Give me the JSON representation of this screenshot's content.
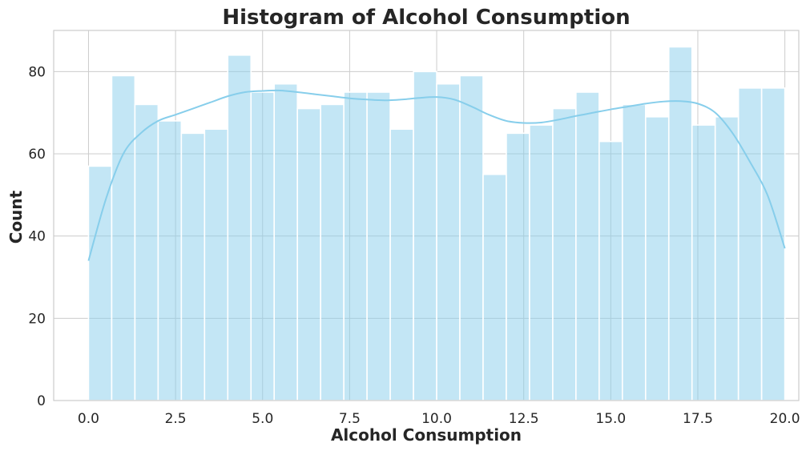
{
  "chart_data": {
    "type": "histogram",
    "title": "Histogram of Alcohol Consumption",
    "xlabel": "Alcohol Consumption",
    "ylabel": "Count",
    "xlim": [
      -1,
      20.4
    ],
    "ylim": [
      0,
      90
    ],
    "xticks": [
      0.0,
      2.5,
      5.0,
      7.5,
      10.0,
      12.5,
      15.0,
      17.5,
      20.0
    ],
    "xtick_labels": [
      "0.0",
      "2.5",
      "5.0",
      "7.5",
      "10.0",
      "12.5",
      "15.0",
      "17.5",
      "20.0"
    ],
    "yticks": [
      0,
      20,
      40,
      60,
      80
    ],
    "ytick_labels": [
      "0",
      "20",
      "40",
      "60",
      "80"
    ],
    "grid": true,
    "bar_color": "#87ceeb",
    "bar_opacity": 0.5,
    "kde_color": "#87ceeb",
    "bins": {
      "range": [
        0,
        20
      ],
      "count": 30,
      "counts": [
        57,
        79,
        72,
        68,
        65,
        66,
        84,
        75,
        77,
        71,
        72,
        75,
        75,
        66,
        80,
        77,
        79,
        55,
        65,
        67,
        71,
        75,
        63,
        72,
        69,
        86,
        67,
        69,
        76,
        76
      ]
    },
    "kde": {
      "x": [
        0,
        0.5,
        1.0,
        1.5,
        2.0,
        2.5,
        3.0,
        3.5,
        4.0,
        4.5,
        5.0,
        5.5,
        6.0,
        6.5,
        7.0,
        7.5,
        8.0,
        8.5,
        9.0,
        9.5,
        10.0,
        10.5,
        11.0,
        11.5,
        12.0,
        12.5,
        13.0,
        13.5,
        14.0,
        14.5,
        15.0,
        15.5,
        16.0,
        16.5,
        17.0,
        17.5,
        18.0,
        18.5,
        19.0,
        19.5,
        20.0
      ],
      "y": [
        34,
        49,
        60,
        65,
        68,
        69.5,
        71,
        72.5,
        74,
        75,
        75.3,
        75.4,
        75,
        74.5,
        74,
        73.5,
        73.2,
        73,
        73.2,
        73.6,
        73.8,
        73.2,
        71.5,
        69.5,
        68,
        67.5,
        67.6,
        68.3,
        69.2,
        70,
        70.8,
        71.5,
        72.2,
        72.7,
        72.8,
        72.2,
        70,
        65,
        58,
        50,
        37
      ]
    }
  }
}
